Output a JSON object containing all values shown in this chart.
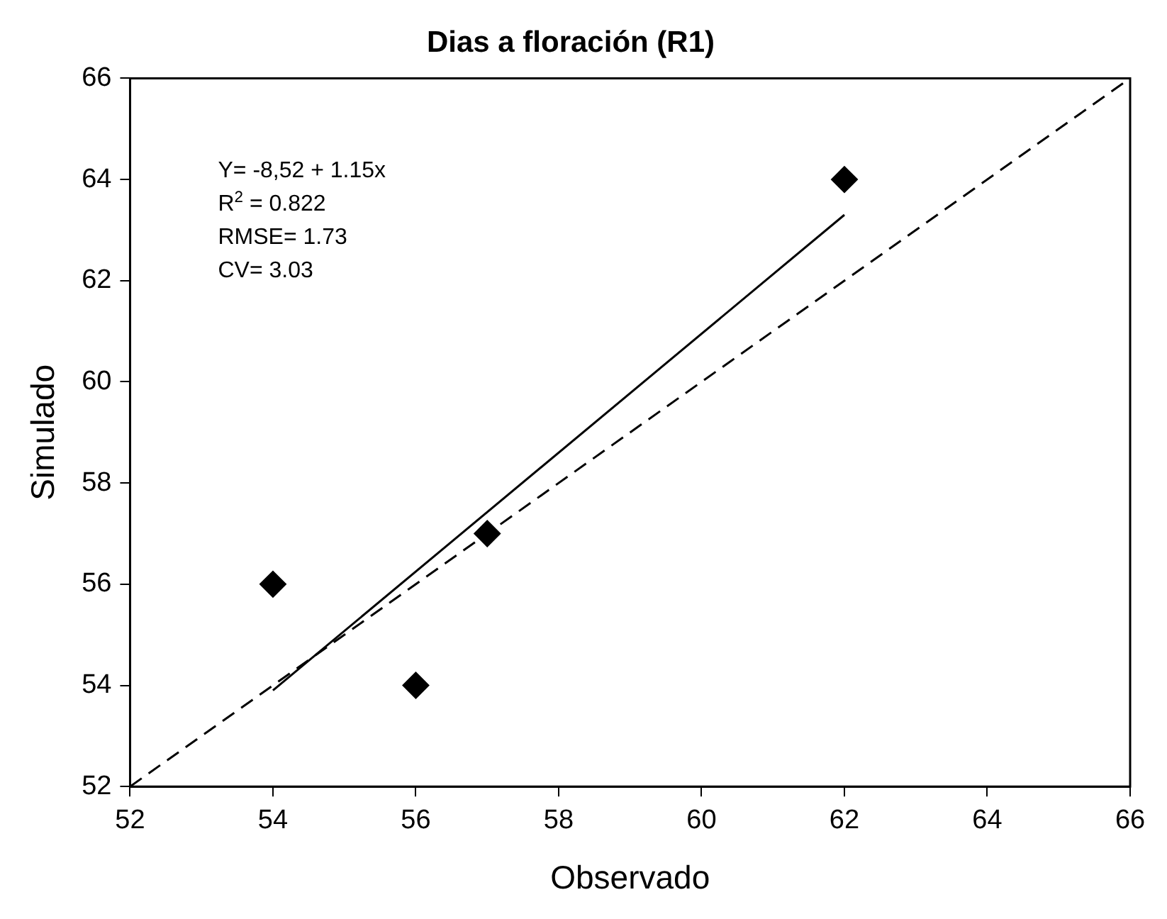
{
  "chart_data": {
    "type": "scatter",
    "title": "Dias a floración (R1)",
    "xlabel": "Observado",
    "ylabel": "Simulado",
    "xlim": [
      52,
      66
    ],
    "xticks": [
      52,
      54,
      56,
      58,
      60,
      62,
      64,
      66
    ],
    "ylim": [
      52,
      66
    ],
    "yticks": [
      52,
      54,
      56,
      58,
      60,
      62,
      64,
      66
    ],
    "grid": false,
    "legend": false,
    "series": [
      {
        "color": "#000000",
        "marker": "diamond",
        "x": [
          54,
          56,
          57,
          62
        ],
        "values": [
          56,
          54,
          57,
          64
        ]
      },
      {
        "type": "line",
        "color": "#000000",
        "marker": "none",
        "line_style": "solid",
        "x": [
          54,
          62
        ],
        "values": [
          53.9,
          63.3
        ]
      },
      {
        "type": "line",
        "color": "#000000",
        "marker": "none",
        "line_style": "dashed",
        "x": [
          52,
          66
        ],
        "values": [
          52,
          66
        ]
      }
    ],
    "annotations": [
      "Y= -8,52 + 1.15x",
      "R$^{2}$ = 0.822",
      "RMSE= 1.73",
      "CV= 3.03"
    ]
  }
}
